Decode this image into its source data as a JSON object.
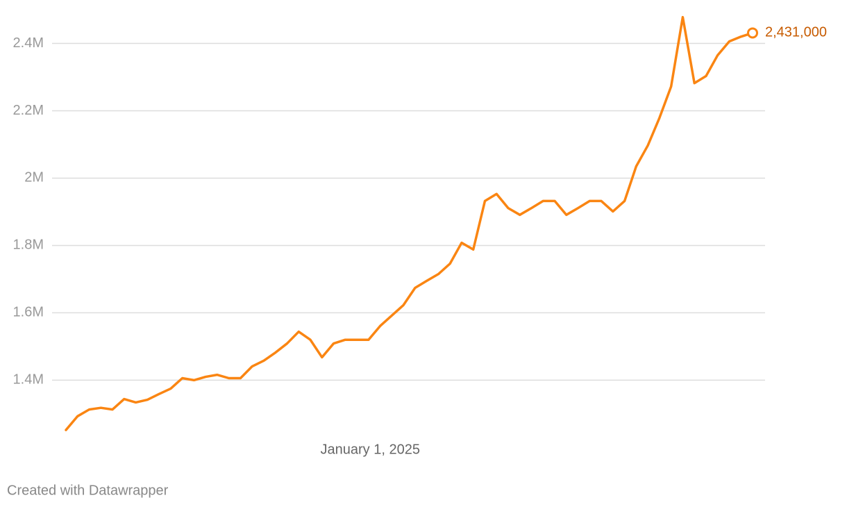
{
  "chart_data": {
    "type": "line",
    "x": [
      "2024-01-01",
      "2024-01-15",
      "2024-01-29",
      "2024-02-12",
      "2024-02-26",
      "2024-03-11",
      "2024-03-25",
      "2024-04-08",
      "2024-04-22",
      "2024-05-06",
      "2024-05-20",
      "2024-06-03",
      "2024-06-17",
      "2024-07-01",
      "2024-07-15",
      "2024-07-29",
      "2024-08-12",
      "2024-08-26",
      "2024-09-09",
      "2024-09-23",
      "2024-10-07",
      "2024-10-21",
      "2024-11-04",
      "2024-11-18",
      "2024-12-02",
      "2024-12-16",
      "2024-12-30",
      "2025-01-13",
      "2025-01-27",
      "2025-02-10",
      "2025-02-24",
      "2025-03-10",
      "2025-03-24",
      "2025-04-07",
      "2025-04-21",
      "2025-05-05",
      "2025-05-19",
      "2025-06-02",
      "2025-06-16",
      "2025-06-30",
      "2025-07-14",
      "2025-07-28",
      "2025-08-11",
      "2025-08-25",
      "2025-09-08",
      "2025-09-22",
      "2025-10-06",
      "2025-10-20",
      "2025-11-03",
      "2025-11-17",
      "2025-12-01",
      "2025-12-15",
      "2025-12-29",
      "2026-01-12",
      "2026-01-26",
      "2026-02-09",
      "2026-02-23",
      "2026-03-09",
      "2026-03-23",
      "2026-04-06"
    ],
    "values": [
      1252000,
      1293000,
      1313000,
      1318000,
      1313000,
      1344000,
      1334000,
      1342000,
      1359000,
      1375000,
      1406000,
      1400000,
      1410000,
      1416000,
      1406000,
      1406000,
      1441000,
      1458000,
      1482000,
      1509000,
      1544000,
      1520000,
      1468000,
      1509000,
      1520000,
      1520000,
      1520000,
      1561000,
      1592000,
      1623000,
      1674000,
      1695000,
      1715000,
      1746000,
      1808000,
      1788000,
      1932000,
      1953000,
      1911000,
      1891000,
      1911000,
      1932000,
      1932000,
      1891000,
      1911000,
      1932000,
      1932000,
      1901000,
      1932000,
      2035000,
      2097000,
      2179000,
      2272000,
      2478000,
      2282000,
      2303000,
      2365000,
      2406000,
      2420000,
      2431000
    ],
    "value_labels": [
      null,
      null,
      null,
      null,
      null,
      null,
      null,
      null,
      null,
      null,
      null,
      null,
      null,
      null,
      null,
      null,
      null,
      null,
      null,
      null,
      null,
      null,
      null,
      null,
      null,
      null,
      null,
      null,
      null,
      null,
      null,
      null,
      null,
      null,
      null,
      null,
      null,
      null,
      null,
      null,
      null,
      null,
      null,
      null,
      null,
      null,
      null,
      null,
      null,
      null,
      null,
      null,
      null,
      null,
      null,
      null,
      null,
      null,
      null,
      "2,431,000"
    ],
    "color": "#fa8512",
    "label_color": "#c75b00",
    "xlim": [
      "2024-01-01",
      "2026-04-06"
    ],
    "xticks": [
      {
        "value": "2025-01-01",
        "label": "January 1, 2025"
      }
    ],
    "ylim": [
      1240000,
      2500000
    ],
    "yticks": [
      {
        "value": 1400000,
        "label": "1.4M"
      },
      {
        "value": 1600000,
        "label": "1.6M"
      },
      {
        "value": 1800000,
        "label": "1.8M"
      },
      {
        "value": 2000000,
        "label": "2M"
      },
      {
        "value": 2200000,
        "label": "2.2M"
      },
      {
        "value": 2400000,
        "label": "2.4M"
      }
    ],
    "grid": true,
    "note": "Created with Datawrapper"
  }
}
